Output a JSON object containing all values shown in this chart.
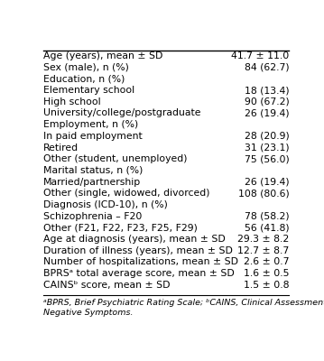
{
  "rows": [
    [
      "Age (years), mean ± SD",
      "41.7 ± 11.0"
    ],
    [
      "Sex (male), n (%)",
      "84 (62.7)"
    ],
    [
      "Education, n (%)",
      ""
    ],
    [
      "   Elementary school",
      "18 (13.4)"
    ],
    [
      "   High school",
      "90 (67.2)"
    ],
    [
      "   University/college/postgraduate",
      "26 (19.4)"
    ],
    [
      "Employment, n (%)",
      ""
    ],
    [
      "   In paid employment",
      "28 (20.9)"
    ],
    [
      "   Retired",
      "31 (23.1)"
    ],
    [
      "   Other (student, unemployed)",
      "75 (56.0)"
    ],
    [
      "Marital status, n (%)",
      ""
    ],
    [
      "   Married/partnership",
      "26 (19.4)"
    ],
    [
      "   Other (single, widowed, divorced)",
      "108 (80.6)"
    ],
    [
      "Diagnosis (ICD-10), n (%)",
      ""
    ],
    [
      "   Schizophrenia – F20",
      "78 (58.2)"
    ],
    [
      "   Other (F21, F22, F23, F25, F29)",
      "56 (41.8)"
    ],
    [
      "Age at diagnosis (years), mean ± SD",
      "29.3 ± 8.2"
    ],
    [
      "Duration of illness (years), mean ± SD",
      "12.7 ± 8.7"
    ],
    [
      "Number of hospitalizations, mean ± SD",
      "2.6 ± 0.7"
    ],
    [
      "BPRSᵃ total average score, mean ± SD",
      "1.6 ± 0.5"
    ],
    [
      "CAINSᵇ score, mean ± SD",
      "1.5 ± 0.8"
    ]
  ],
  "footnote_line1": "ᵃBPRS, Brief Psychiatric Rating Scale; ᵇCAINS, Clinical Assessment Interview for",
  "footnote_line2": "Negative Symptoms.",
  "bg_color": "#ffffff",
  "text_color": "#000000",
  "font_size": 7.8,
  "footnote_font_size": 6.8
}
